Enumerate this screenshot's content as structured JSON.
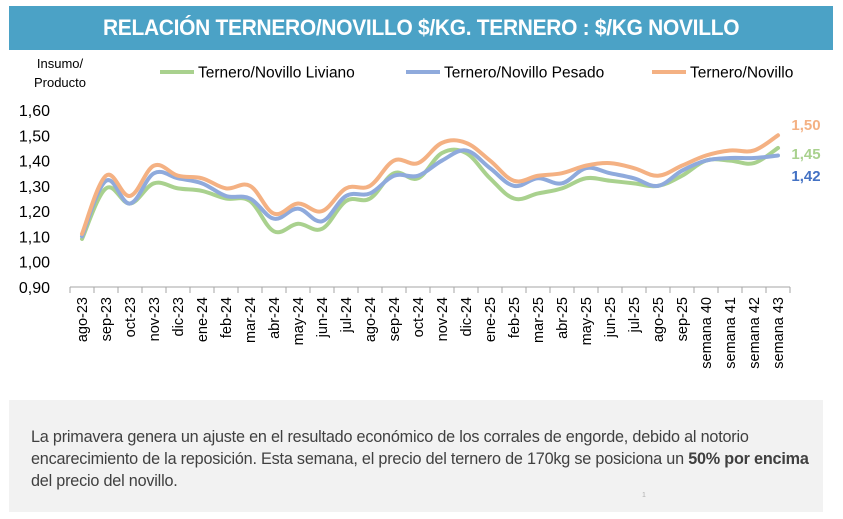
{
  "header": {
    "title": "RELACIÓN TERNERO/NOVILLO $/KG. TERNERO : $/KG NOVILLO"
  },
  "chart_data": {
    "type": "line",
    "title": "RELACIÓN TERNERO/NOVILLO $/KG. TERNERO : $/KG NOVILLO",
    "ylabel": "Insumo/ Producto",
    "ylabel_lines": [
      "Insumo/",
      "Producto"
    ],
    "xlabel": "",
    "ylim": [
      0.9,
      1.6
    ],
    "yticks": [
      0.9,
      1.0,
      1.1,
      1.2,
      1.3,
      1.4,
      1.5,
      1.6
    ],
    "ytick_labels": [
      "0,90",
      "1,00",
      "1,10",
      "1,20",
      "1,30",
      "1,40",
      "1,50",
      "1,60"
    ],
    "grid": false,
    "legend_position": "top",
    "categories": [
      "ago-23",
      "sep-23",
      "oct-23",
      "nov-23",
      "dic-23",
      "ene-24",
      "feb-24",
      "mar-24",
      "abr-24",
      "may-24",
      "jun-24",
      "jul-24",
      "ago-24",
      "sep-24",
      "oct-24",
      "nov-24",
      "dic-24",
      "ene-25",
      "feb-25",
      "mar-25",
      "abr-25",
      "may-25",
      "jun-25",
      "jul-25",
      "ago-25",
      "sep-25",
      "semana 40",
      "semana 41",
      "semana 42",
      "semana 43"
    ],
    "series": [
      {
        "name": "Ternero/Novillo Liviano",
        "color": "#a9d18e",
        "values": [
          1.09,
          1.29,
          1.23,
          1.31,
          1.29,
          1.28,
          1.25,
          1.24,
          1.12,
          1.15,
          1.13,
          1.24,
          1.25,
          1.35,
          1.33,
          1.43,
          1.43,
          1.33,
          1.25,
          1.27,
          1.29,
          1.33,
          1.32,
          1.31,
          1.3,
          1.34,
          1.4,
          1.4,
          1.39,
          1.45
        ],
        "end_label": "1,45",
        "end_label_color": "#a9d18e"
      },
      {
        "name": "Ternero/Novillo Pesado",
        "color": "#8faadc",
        "values": [
          1.1,
          1.32,
          1.23,
          1.35,
          1.33,
          1.31,
          1.26,
          1.25,
          1.17,
          1.21,
          1.16,
          1.26,
          1.27,
          1.34,
          1.34,
          1.4,
          1.44,
          1.37,
          1.3,
          1.33,
          1.31,
          1.37,
          1.35,
          1.33,
          1.3,
          1.36,
          1.4,
          1.41,
          1.41,
          1.42
        ],
        "end_label": "1,42",
        "end_label_color": "#4472c4"
      },
      {
        "name": "Ternero/Novillo",
        "color": "#f4b183",
        "values": [
          1.11,
          1.34,
          1.26,
          1.38,
          1.34,
          1.33,
          1.29,
          1.3,
          1.19,
          1.23,
          1.2,
          1.29,
          1.3,
          1.4,
          1.39,
          1.47,
          1.47,
          1.4,
          1.32,
          1.34,
          1.35,
          1.38,
          1.39,
          1.37,
          1.34,
          1.38,
          1.42,
          1.44,
          1.44,
          1.5
        ],
        "end_label": "1,50",
        "end_label_color": "#f4b183"
      }
    ]
  },
  "note": {
    "text_before": "La primavera genera un ajuste en el resultado económico de los corrales de engorde, debido al notorio encarecimiento de la reposición. Esta semana, el precio del ternero de 170kg se posiciona un ",
    "text_bold": "50% por encima",
    "text_after": " del precio del novillo.",
    "footnote": "1"
  }
}
